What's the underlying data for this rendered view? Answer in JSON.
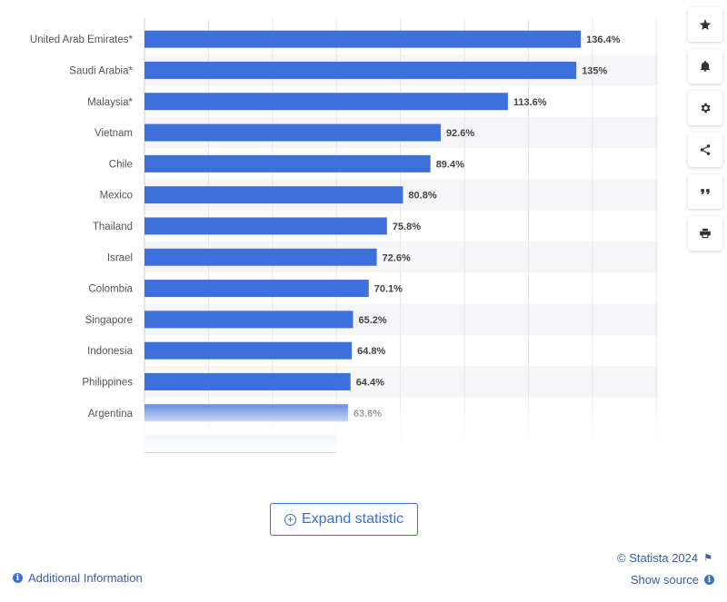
{
  "chart_data": {
    "type": "bar",
    "orientation": "horizontal",
    "categories": [
      "United Arab Emirates*",
      "Saudi Arabia*",
      "Malaysia*",
      "Vietnam",
      "Chile",
      "Mexico",
      "Thailand",
      "Israel",
      "Colombia",
      "Singapore",
      "Indonesia",
      "Philippines",
      "Argentina"
    ],
    "values": [
      136.4,
      135,
      113.6,
      92.6,
      89.4,
      80.8,
      75.8,
      72.6,
      70.1,
      65.2,
      64.8,
      64.4,
      63.6
    ],
    "value_labels": [
      "136.4%",
      "135%",
      "113.6%",
      "92.6%",
      "89.4%",
      "80.8%",
      "75.8%",
      "72.6%",
      "70.1%",
      "65.2%",
      "64.8%",
      "64.4%",
      "63.6%"
    ],
    "xlim": [
      0,
      160
    ],
    "grid": true,
    "bar_color": "#3e70dc",
    "stripe_color": "#f6f6f9"
  },
  "toolbar": {
    "icons": [
      "star-icon",
      "bell-icon",
      "gear-icon",
      "share-icon",
      "quote-icon",
      "print-icon"
    ]
  },
  "expand": {
    "label": "Expand statistic"
  },
  "footer": {
    "credit": "© Statista 2024",
    "show_source": "Show source",
    "additional_info": "Additional Information"
  }
}
